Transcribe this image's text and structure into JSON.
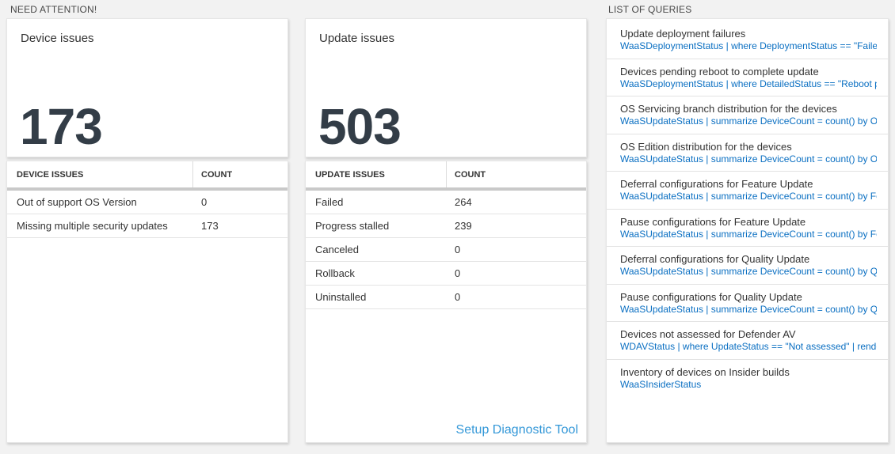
{
  "sections": {
    "need_attention": "NEED ATTENTION!",
    "list_of_queries": "LIST OF QUERIES"
  },
  "device_card": {
    "title": "Device issues",
    "value": "173"
  },
  "update_card": {
    "title": "Update issues",
    "value": "503"
  },
  "device_table": {
    "headers": [
      "DEVICE ISSUES",
      "COUNT"
    ],
    "rows": [
      [
        "Out of support OS Version",
        "0"
      ],
      [
        "Missing multiple security updates",
        "173"
      ]
    ]
  },
  "update_table": {
    "headers": [
      "UPDATE ISSUES",
      "COUNT"
    ],
    "rows": [
      [
        "Failed",
        "264"
      ],
      [
        "Progress stalled",
        "239"
      ],
      [
        "Canceled",
        "0"
      ],
      [
        "Rollback",
        "0"
      ],
      [
        "Uninstalled",
        "0"
      ]
    ],
    "footer_link": "Setup Diagnostic Tool"
  },
  "queries": [
    {
      "title": "Update deployment failures",
      "query": "WaaSDeploymentStatus | where DeploymentStatus == \"Failed\" |..."
    },
    {
      "title": "Devices pending reboot to complete update",
      "query": "WaaSDeploymentStatus | where DetailedStatus == \"Reboot pend..."
    },
    {
      "title": "OS Servicing branch distribution for the devices",
      "query": "WaaSUpdateStatus | summarize DeviceCount = count() by OSSer..."
    },
    {
      "title": "OS Edition distribution for the devices",
      "query": "WaaSUpdateStatus | summarize DeviceCount = count() by OSEdit..."
    },
    {
      "title": "Deferral configurations for Feature Update",
      "query": "WaaSUpdateStatus | summarize DeviceCount = count() by Featur..."
    },
    {
      "title": "Pause configurations for Feature Update",
      "query": "WaaSUpdateStatus | summarize DeviceCount = count() by Featur..."
    },
    {
      "title": "Deferral configurations for Quality Update",
      "query": "WaaSUpdateStatus | summarize DeviceCount = count() by Qualit..."
    },
    {
      "title": "Pause configurations for Quality Update",
      "query": "WaaSUpdateStatus | summarize DeviceCount = count() by Qualit..."
    },
    {
      "title": "Devices not assessed for Defender AV",
      "query": "WDAVStatus | where UpdateStatus == \"Not assessed\" | render ta..."
    },
    {
      "title": "Inventory of devices on Insider builds",
      "query": "WaaSInsiderStatus"
    }
  ],
  "colors": {
    "background": "#f2f2f2",
    "query_blue": "#0a6fc2",
    "link_blue": "#3498d8",
    "big_number": "#333d47",
    "thick_separator": "#c9c9c9"
  }
}
